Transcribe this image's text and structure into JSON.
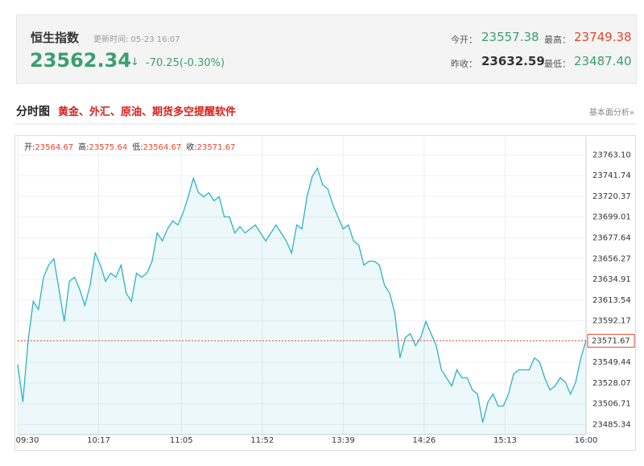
{
  "header": {
    "title": "恒生指数",
    "update_time": "更新时间: 05-23 16:07",
    "price": "23562.34",
    "arrow": "↓",
    "change": "-70.25(-0.30%)",
    "stats": [
      {
        "label": "今开：",
        "value": "23557.38"
      },
      {
        "label": "最高：",
        "value": "23749.38"
      },
      {
        "label": "昨收：",
        "value": "23632.59"
      },
      {
        "label": "最低：",
        "value": "23487.40"
      }
    ]
  },
  "section": {
    "title": "分时图",
    "promo": "黄金、外汇、原油、期货多空提醒软件",
    "link": "基本面分析»"
  },
  "chart_data": {
    "type": "line",
    "ohlc": [
      {
        "label": "开:",
        "value": 23564.67
      },
      {
        "label": "高:",
        "value": 23575.64
      },
      {
        "label": "低:",
        "value": 23564.67
      },
      {
        "label": "收:",
        "value": 23571.67
      }
    ],
    "x": [
      "09:30",
      "09:33",
      "09:36",
      "09:39",
      "09:42",
      "09:45",
      "09:48",
      "09:51",
      "09:54",
      "09:57",
      "10:00",
      "10:03",
      "10:06",
      "10:09",
      "10:12",
      "10:15",
      "10:18",
      "10:21",
      "10:24",
      "10:27",
      "10:30",
      "10:33",
      "10:36",
      "10:39",
      "10:42",
      "10:45",
      "10:48",
      "10:51",
      "10:54",
      "10:57",
      "11:00",
      "11:03",
      "11:06",
      "11:09",
      "11:12",
      "11:15",
      "11:18",
      "11:21",
      "11:24",
      "11:27",
      "11:30",
      "11:33",
      "11:36",
      "11:39",
      "11:42",
      "11:45",
      "11:48",
      "11:51",
      "11:54",
      "11:57",
      "12:00",
      "13:03",
      "13:06",
      "13:09",
      "13:12",
      "13:15",
      "13:18",
      "13:21",
      "13:24",
      "13:27",
      "13:30",
      "13:33",
      "13:36",
      "13:39",
      "13:42",
      "13:45",
      "13:48",
      "13:51",
      "13:54",
      "13:57",
      "14:00",
      "14:03",
      "14:06",
      "14:09",
      "14:12",
      "14:15",
      "14:18",
      "14:21",
      "14:24",
      "14:27",
      "14:30",
      "14:33",
      "14:36",
      "14:39",
      "14:42",
      "14:45",
      "14:48",
      "14:51",
      "14:54",
      "14:57",
      "15:00",
      "15:03",
      "15:06",
      "15:09",
      "15:12",
      "15:15",
      "15:18",
      "15:21",
      "15:24",
      "15:27",
      "15:30",
      "15:33",
      "15:36",
      "15:39",
      "15:42",
      "15:45",
      "15:48",
      "15:51",
      "15:54",
      "15:57",
      "16:00"
    ],
    "series": [
      {
        "color": "#2bb3c4",
        "values": [
          23547.5,
          23508.6,
          23570.7,
          23612.2,
          23603.9,
          23637.1,
          23649.5,
          23656.1,
          23624.6,
          23591.5,
          23632.9,
          23637.1,
          23624.6,
          23608.0,
          23628.8,
          23661.9,
          23649.5,
          23632.9,
          23641.2,
          23637.1,
          23649.5,
          23620.5,
          23612.2,
          23641.2,
          23637.1,
          23641.2,
          23653.6,
          23682.6,
          23674.4,
          23686.8,
          23695.1,
          23690.9,
          23703.4,
          23720.0,
          23739.0,
          23724.1,
          23720.0,
          23724.1,
          23715.8,
          23720.0,
          23699.2,
          23699.2,
          23682.6,
          23689.3,
          23682.6,
          23686.8,
          23690.9,
          23682.6,
          23674.4,
          23682.6,
          23690.9,
          23682.6,
          23674.4,
          23661.9,
          23690.9,
          23686.8,
          23720.0,
          23740.7,
          23749.4,
          23732.4,
          23728.3,
          23711.7,
          23699.2,
          23686.8,
          23690.9,
          23674.4,
          23670.2,
          23649.5,
          23653.6,
          23653.6,
          23649.5,
          23628.8,
          23620.5,
          23599.7,
          23554.1,
          23574.9,
          23579.0,
          23566.6,
          23574.9,
          23591.5,
          23579.0,
          23566.6,
          23541.7,
          23533.4,
          23525.1,
          23541.7,
          23533.4,
          23533.4,
          23521.0,
          23516.8,
          23487.4,
          23508.6,
          23516.8,
          23504.4,
          23504.4,
          23516.8,
          23537.5,
          23541.7,
          23541.7,
          23541.7,
          23554.1,
          23550.0,
          23533.4,
          23521.0,
          23525.1,
          23533.4,
          23529.2,
          23516.8,
          23529.2,
          23554.1,
          23571.67
        ]
      }
    ],
    "xlim": [
      "09:30",
      "16:00"
    ],
    "xticks": [
      "09:30",
      "10:17",
      "11:05",
      "11:52",
      "13:39",
      "14:26",
      "15:13",
      "16:00"
    ],
    "ylim": [
      23475,
      23775
    ],
    "yticks": [
      {
        "value": 23763.1,
        "label": "23763.10"
      },
      23741.74,
      23720.37,
      23699.01,
      23677.64,
      23656.27,
      23634.91,
      23613.54,
      23592.17,
      23549.44,
      23528.07,
      23506.71,
      23485.34
    ],
    "last_price": 23571.67,
    "last_price_color": "#e8452e",
    "grid": true
  }
}
